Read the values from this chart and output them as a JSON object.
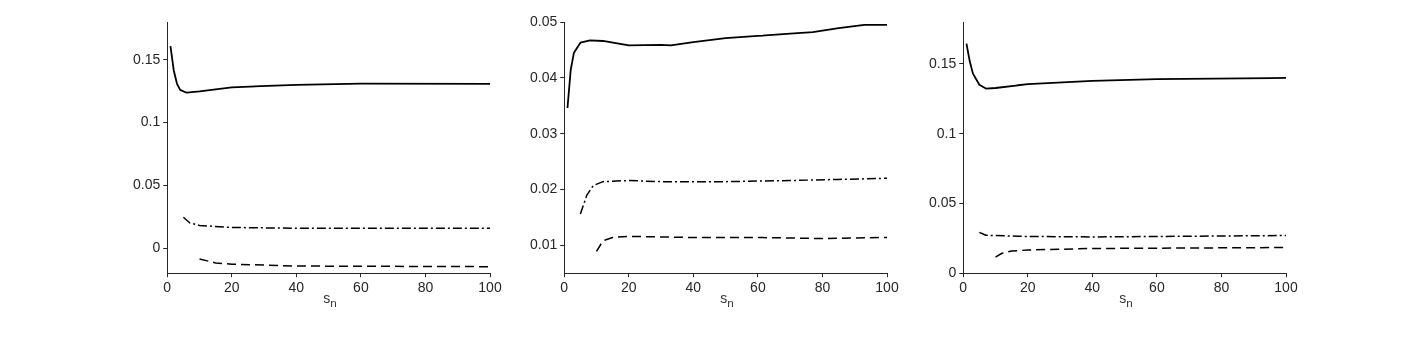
{
  "chart_data": [
    {
      "type": "line",
      "xlabel": "s$_{n}$",
      "xlim": [
        0,
        100
      ],
      "xticks": [
        0,
        20,
        40,
        60,
        80,
        100
      ],
      "ylim": [
        -0.02,
        0.18
      ],
      "yticks": [
        0,
        0.05,
        0.1,
        0.15
      ],
      "grid": false,
      "legend": false,
      "marker": "none",
      "series": [
        {
          "color": "#000000",
          "line_style": "solid",
          "x": [
            1,
            2,
            3,
            4,
            6,
            10,
            20,
            40,
            60,
            100
          ],
          "values": [
            0.1607,
            0.1416,
            0.131,
            0.126,
            0.1237,
            0.1247,
            0.128,
            0.13,
            0.131,
            0.1308
          ]
        },
        {
          "color": "#000000",
          "line_style": "dashdot",
          "x": [
            5,
            7,
            10,
            20,
            40,
            100
          ],
          "values": [
            0.0245,
            0.02,
            0.018,
            0.0164,
            0.0158,
            0.0158
          ]
        },
        {
          "color": "#000000",
          "line_style": "dashed",
          "x": [
            10,
            15,
            20,
            40,
            100
          ],
          "values": [
            -0.0087,
            -0.0118,
            -0.0128,
            -0.0143,
            -0.0148
          ]
        }
      ]
    },
    {
      "type": "line",
      "xlabel": "s$_{n}$",
      "xlim": [
        0,
        100
      ],
      "xticks": [
        0,
        20,
        40,
        60,
        80,
        100
      ],
      "ylim": [
        0.005,
        0.05
      ],
      "yticks": [
        0.01,
        0.02,
        0.03,
        0.04,
        0.05
      ],
      "grid": false,
      "legend": false,
      "marker": "none",
      "series": [
        {
          "color": "#000000",
          "line_style": "solid",
          "x": [
            1,
            2,
            3,
            5,
            8,
            12,
            20,
            30,
            33,
            40,
            50,
            60,
            70,
            77,
            85,
            93,
            100
          ],
          "values": [
            0.0346,
            0.0414,
            0.0445,
            0.0463,
            0.0467,
            0.0466,
            0.0458,
            0.0459,
            0.0458,
            0.0464,
            0.0471,
            0.0475,
            0.0479,
            0.0482,
            0.0489,
            0.0495,
            0.0495
          ]
        },
        {
          "color": "#000000",
          "line_style": "dashdot",
          "x": [
            5,
            7,
            9,
            12,
            20,
            30,
            50,
            70,
            85,
            100
          ],
          "values": [
            0.0156,
            0.019,
            0.0207,
            0.0214,
            0.0216,
            0.0214,
            0.0214,
            0.0216,
            0.0218,
            0.022
          ]
        },
        {
          "color": "#000000",
          "line_style": "dashed",
          "x": [
            10,
            12,
            15,
            20,
            40,
            60,
            80,
            100
          ],
          "values": [
            0.0089,
            0.0108,
            0.0114,
            0.0116,
            0.0114,
            0.0114,
            0.0112,
            0.0114
          ]
        }
      ]
    },
    {
      "type": "line",
      "xlabel": "s$_{n}$",
      "xlim": [
        0,
        100
      ],
      "xticks": [
        0,
        20,
        40,
        60,
        80,
        100
      ],
      "ylim": [
        0,
        0.18
      ],
      "yticks": [
        0,
        0.05,
        0.1,
        0.15
      ],
      "grid": false,
      "legend": false,
      "marker": "none",
      "series": [
        {
          "color": "#000000",
          "line_style": "solid",
          "x": [
            1,
            2,
            3,
            5,
            7,
            10,
            20,
            40,
            60,
            100
          ],
          "values": [
            0.1645,
            0.152,
            0.143,
            0.135,
            0.1323,
            0.1327,
            0.1355,
            0.1378,
            0.139,
            0.1399
          ]
        },
        {
          "color": "#000000",
          "line_style": "dashdot",
          "x": [
            5,
            7,
            20,
            40,
            100
          ],
          "values": [
            0.0293,
            0.0272,
            0.0263,
            0.026,
            0.027
          ]
        },
        {
          "color": "#000000",
          "line_style": "dashed",
          "x": [
            10,
            12,
            15,
            20,
            40,
            100
          ],
          "values": [
            0.0115,
            0.0143,
            0.0159,
            0.0166,
            0.0177,
            0.0184
          ]
        }
      ]
    }
  ]
}
